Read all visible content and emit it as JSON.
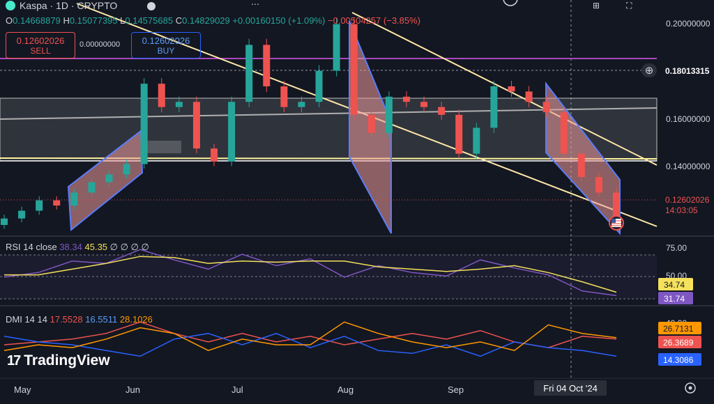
{
  "header": {
    "symbol": "Kaspa · 1D · CRYPTO",
    "ohlc": {
      "o_label": "O",
      "o_value": "0.14668879",
      "h_label": "H",
      "h_value": "0.15077395",
      "l_label": "L",
      "l_value": "0.14575685",
      "c_label": "C",
      "c_value": "0.14829029",
      "change": "+0.00160150 (+1.09%)",
      "change2": "−0.00504257 (−3.85%)"
    },
    "sell": {
      "value": "0.12602026",
      "label": "SELL"
    },
    "spread": "0.00000000",
    "buy": {
      "value": "0.12602026",
      "label": "BUY"
    }
  },
  "price_axis": {
    "ticks": [
      "0.20000000",
      "0.18013315",
      "0.16000000",
      "0.14000000"
    ],
    "current_price": "0.12602026",
    "countdown": "14:03:05"
  },
  "rsi": {
    "label": "RSI 14 close",
    "v1": "38.34",
    "v2": "45.35",
    "nulls": "∅ ∅ ∅ ∅",
    "ticks": [
      "75.00",
      "50.00"
    ],
    "badge_ma": "34.74",
    "badge_rsi": "31.74"
  },
  "dmi": {
    "label": "DMI 14 14",
    "v1": "17.5528",
    "v2": "16.5511",
    "v3": "28.1026",
    "tick": "40.00",
    "badge_adx": "26.7131",
    "badge_plus": "26.3689",
    "badge_minus": "14.3086"
  },
  "time_axis": {
    "labels": [
      "May",
      "Jun",
      "Jul",
      "Aug",
      "Sep"
    ],
    "crosshair_label": "Fri 04 Oct '24"
  },
  "branding": {
    "logo_text": "TradingView"
  },
  "colors": {
    "up": "#26a69a",
    "down": "#ef5350",
    "rsi": "#7e57c2",
    "rsi_ma": "#f5e15c",
    "dmi_plus": "#ef5350",
    "dmi_minus": "#2962ff",
    "adx": "#ff9800"
  },
  "chart_data": [
    {
      "type": "candlestick",
      "title": "Kaspa · 1D · CRYPTO",
      "ylim": [
        0.119,
        0.205
      ],
      "x": [
        "2024-04-26",
        "2024-05-01",
        "2024-05-06",
        "2024-05-11",
        "2024-05-16",
        "2024-05-21",
        "2024-05-26",
        "2024-05-31",
        "2024-06-05",
        "2024-06-10",
        "2024-06-15",
        "2024-06-20",
        "2024-06-25",
        "2024-06-30",
        "2024-07-05",
        "2024-07-10",
        "2024-07-15",
        "2024-07-20",
        "2024-07-25",
        "2024-07-30",
        "2024-08-04",
        "2024-08-09",
        "2024-08-14",
        "2024-08-19",
        "2024-08-24",
        "2024-08-29",
        "2024-09-03",
        "2024-09-08",
        "2024-09-13",
        "2024-09-18",
        "2024-09-23",
        "2024-09-28",
        "2024-10-03",
        "2024-10-08",
        "2024-10-13",
        "2024-10-18"
      ],
      "close": [
        0.125,
        0.128,
        0.132,
        0.13,
        0.135,
        0.139,
        0.142,
        0.146,
        0.177,
        0.168,
        0.17,
        0.152,
        0.147,
        0.17,
        0.192,
        0.176,
        0.168,
        0.17,
        0.182,
        0.2,
        0.165,
        0.158,
        0.172,
        0.17,
        0.168,
        0.165,
        0.15,
        0.16,
        0.176,
        0.174,
        0.17,
        0.166,
        0.15,
        0.141,
        0.135,
        0.126
      ],
      "reference_lines": {
        "magenta_resistance": 0.1853,
        "price_label_line": 0.18013315,
        "support_white": 0.1426
      }
    },
    {
      "type": "line",
      "title": "RSI 14 close",
      "ylim": [
        25,
        80
      ],
      "x": [
        "2024-04-26",
        "2024-05-06",
        "2024-05-16",
        "2024-05-26",
        "2024-06-05",
        "2024-06-15",
        "2024-06-25",
        "2024-07-05",
        "2024-07-15",
        "2024-07-25",
        "2024-08-04",
        "2024-08-14",
        "2024-08-24",
        "2024-09-03",
        "2024-09-13",
        "2024-09-23",
        "2024-10-03",
        "2024-10-13",
        "2024-10-18"
      ],
      "series": [
        {
          "name": "RSI",
          "values": [
            48,
            52,
            62,
            60,
            72,
            63,
            55,
            68,
            58,
            64,
            48,
            58,
            52,
            49,
            63,
            56,
            50,
            36,
            32
          ]
        },
        {
          "name": "RSI MA",
          "values": [
            50,
            50,
            55,
            60,
            66,
            65,
            60,
            62,
            61,
            62,
            62,
            57,
            55,
            53,
            55,
            58,
            52,
            44,
            35
          ]
        }
      ]
    },
    {
      "type": "line",
      "title": "DMI 14 14",
      "ylim": [
        0,
        45
      ],
      "x": [
        "2024-04-26",
        "2024-05-06",
        "2024-05-16",
        "2024-05-26",
        "2024-06-05",
        "2024-06-15",
        "2024-06-25",
        "2024-07-05",
        "2024-07-15",
        "2024-07-25",
        "2024-08-04",
        "2024-08-14",
        "2024-08-24",
        "2024-09-03",
        "2024-09-13",
        "2024-09-23",
        "2024-10-03",
        "2024-10-13",
        "2024-10-18"
      ],
      "series": [
        {
          "name": "+DI",
          "values": [
            22,
            24,
            26,
            30,
            38,
            30,
            24,
            30,
            24,
            28,
            22,
            26,
            30,
            26,
            32,
            24,
            20,
            28,
            26
          ]
        },
        {
          "name": "−DI",
          "values": [
            28,
            24,
            22,
            18,
            14,
            26,
            30,
            22,
            30,
            20,
            28,
            18,
            16,
            22,
            14,
            24,
            20,
            18,
            14
          ]
        },
        {
          "name": "ADX",
          "values": [
            18,
            22,
            20,
            26,
            34,
            30,
            18,
            26,
            22,
            22,
            38,
            30,
            24,
            20,
            24,
            18,
            36,
            30,
            27
          ]
        }
      ]
    }
  ]
}
